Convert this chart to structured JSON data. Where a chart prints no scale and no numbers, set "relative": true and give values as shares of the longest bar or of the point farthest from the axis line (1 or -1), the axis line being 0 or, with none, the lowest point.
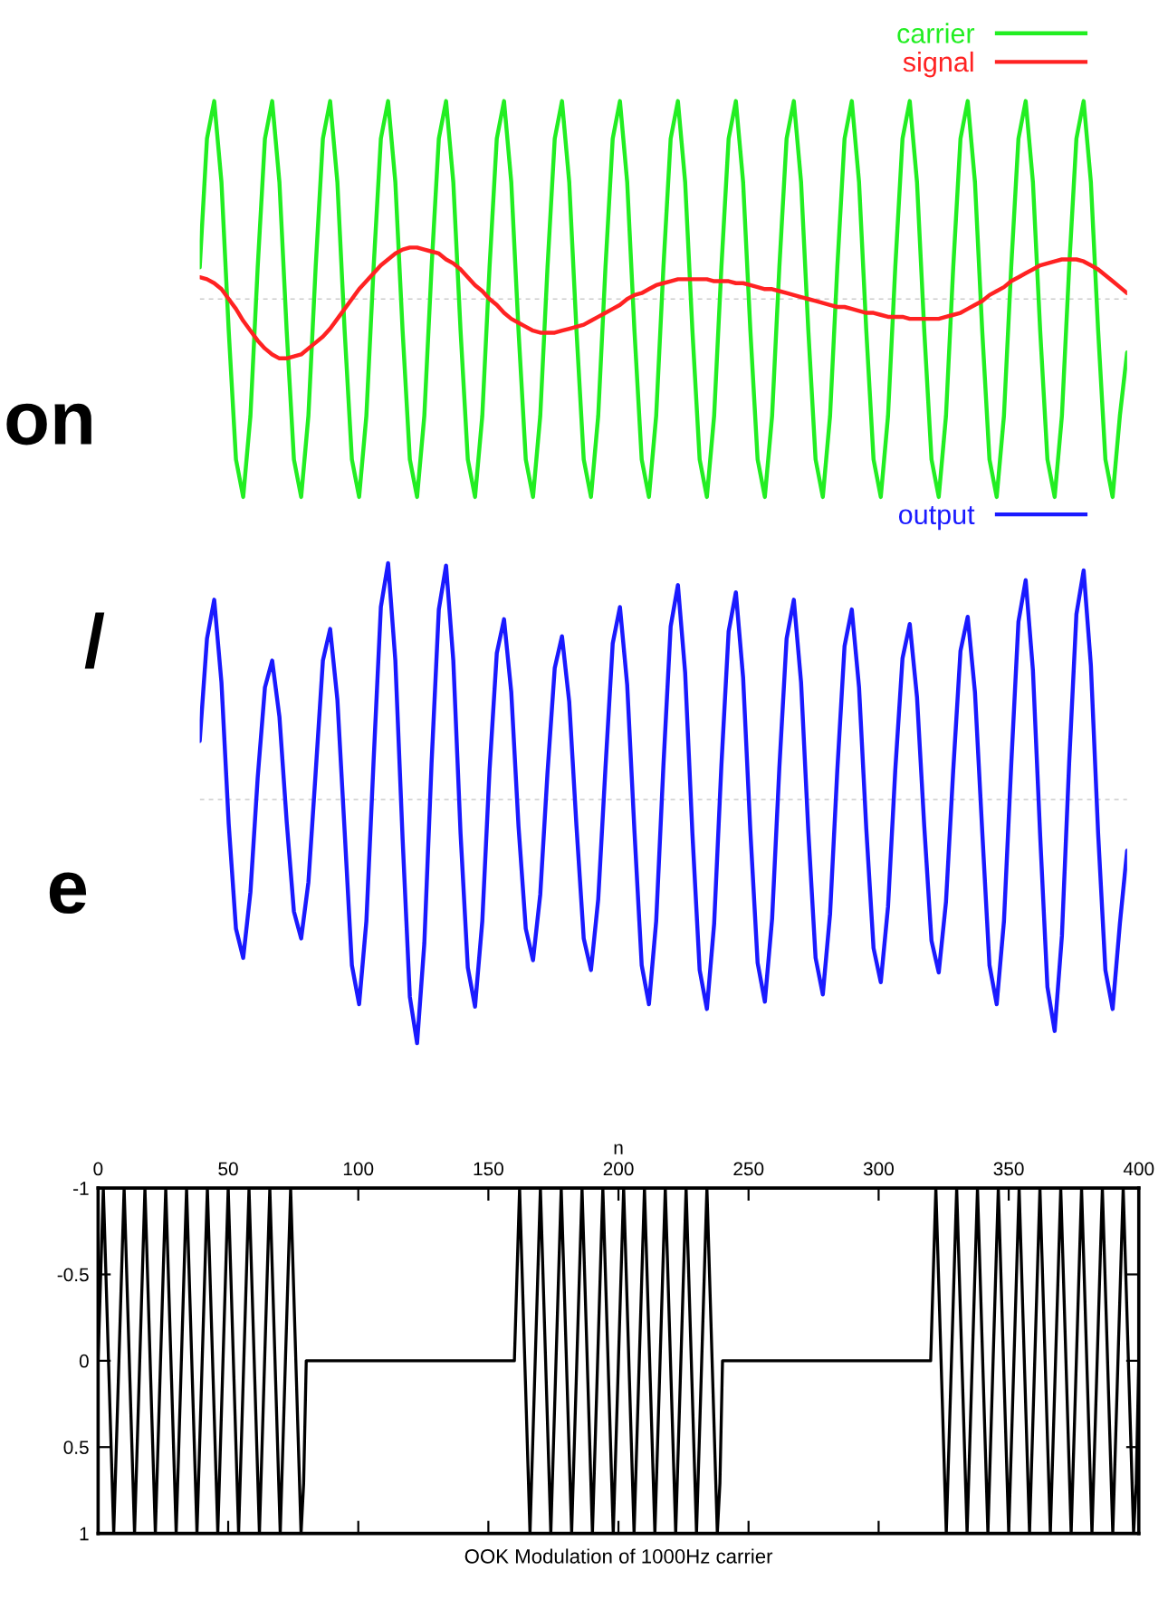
{
  "chart_data": [
    {
      "type": "other",
      "annotations": [
        "on",
        "/",
        "e"
      ]
    },
    {
      "type": "line",
      "relative": true,
      "legend": "top right",
      "ref_lines": [
        {
          "axis": "y",
          "value": 0,
          "color": "#cccccc",
          "line_style": "dashed"
        }
      ],
      "categories": [
        null,
        null,
        null,
        null,
        null,
        null,
        null,
        null,
        null,
        null,
        null,
        null,
        null,
        null,
        null,
        null,
        null,
        null,
        null,
        null,
        null,
        null,
        null,
        null,
        null,
        null,
        null,
        null,
        null,
        null,
        null,
        null,
        null,
        null,
        null,
        null,
        null,
        null,
        null,
        null,
        null,
        null,
        null,
        null,
        null,
        null,
        null,
        null,
        null,
        null,
        null,
        null,
        null,
        null,
        null,
        null,
        null,
        null,
        null,
        null,
        null,
        null,
        null,
        null,
        null,
        null,
        null,
        null,
        null,
        null,
        null,
        null,
        null,
        null,
        null,
        null,
        null,
        null,
        null,
        null,
        null,
        null,
        null,
        null,
        null,
        null,
        null,
        null,
        null,
        null,
        null,
        null,
        null,
        null,
        null,
        null,
        null,
        null,
        null,
        null,
        null,
        null,
        null,
        null,
        null,
        null,
        null,
        null,
        null,
        null,
        null,
        null,
        null,
        null,
        null,
        null,
        null,
        null,
        null,
        null,
        null,
        null,
        null,
        null,
        null,
        null,
        null,
        null,
        null
      ],
      "series": [
        {
          "name": "carrier",
          "color": "#22ee22",
          "values": [
            0.16,
            0.81,
            1,
            0.59,
            -0.16,
            -0.81,
            -1,
            -0.59,
            0.16,
            0.81,
            1,
            0.59,
            -0.16,
            -0.81,
            -1,
            -0.59,
            0.16,
            0.81,
            1,
            0.59,
            -0.16,
            -0.81,
            -1,
            -0.59,
            0.16,
            0.81,
            1,
            0.59,
            -0.16,
            -0.81,
            -1,
            -0.59,
            0.16,
            0.81,
            1,
            0.59,
            -0.16,
            -0.81,
            -1,
            -0.59,
            0.16,
            0.81,
            1,
            0.59,
            -0.16,
            -0.81,
            -1,
            -0.59,
            0.16,
            0.81,
            1,
            0.59,
            -0.16,
            -0.81,
            -1,
            -0.59,
            0.16,
            0.81,
            1,
            0.59,
            -0.16,
            -0.81,
            -1,
            -0.59,
            0.16,
            0.81,
            1,
            0.59,
            -0.16,
            -0.81,
            -1,
            -0.59,
            0.16,
            0.81,
            1,
            0.59,
            -0.16,
            -0.81,
            -1,
            -0.59,
            0.16,
            0.81,
            1,
            0.59,
            -0.16,
            -0.81,
            -1,
            -0.59,
            0.16,
            0.81,
            1,
            0.59,
            -0.16,
            -0.81,
            -1,
            -0.59,
            0.16,
            0.81,
            1,
            0.59,
            -0.16,
            -0.81,
            -1,
            -0.59,
            0.16,
            0.81,
            1,
            0.59,
            -0.16,
            -0.81,
            -1,
            -0.59,
            0.16,
            0.81,
            1,
            0.59,
            -0.16,
            -0.81,
            -1,
            -0.59,
            0.16,
            0.81,
            1,
            0.59,
            -0.16,
            -0.81,
            -1,
            -0.59,
            -0.27
          ]
        },
        {
          "name": "signal",
          "color": "#ff2222",
          "values": [
            0.11,
            0.1,
            0.08,
            0.05,
            0.0,
            -0.05,
            -0.11,
            -0.16,
            -0.21,
            -0.25,
            -0.28,
            -0.3,
            -0.3,
            -0.29,
            -0.28,
            -0.25,
            -0.22,
            -0.19,
            -0.15,
            -0.1,
            -0.05,
            0.0,
            0.05,
            0.09,
            0.13,
            0.17,
            0.2,
            0.23,
            0.25,
            0.26,
            0.26,
            0.25,
            0.24,
            0.23,
            0.2,
            0.18,
            0.15,
            0.11,
            0.07,
            0.04,
            0.0,
            -0.03,
            -0.07,
            -0.1,
            -0.12,
            -0.14,
            -0.16,
            -0.17,
            -0.17,
            -0.17,
            -0.16,
            -0.15,
            -0.14,
            -0.13,
            -0.11,
            -0.09,
            -0.07,
            -0.05,
            -0.03,
            0.0,
            0.02,
            0.03,
            0.05,
            0.07,
            0.08,
            0.09,
            0.1,
            0.1,
            0.1,
            0.1,
            0.1,
            0.09,
            0.09,
            0.09,
            0.08,
            0.08,
            0.07,
            0.06,
            0.05,
            0.05,
            0.04,
            0.03,
            0.02,
            0.01,
            0.0,
            -0.01,
            -0.02,
            -0.03,
            -0.04,
            -0.04,
            -0.05,
            -0.06,
            -0.07,
            -0.07,
            -0.08,
            -0.09,
            -0.09,
            -0.09,
            -0.1,
            -0.1,
            -0.1,
            -0.1,
            -0.1,
            -0.09,
            -0.08,
            -0.07,
            -0.05,
            -0.03,
            -0.01,
            0.02,
            0.04,
            0.06,
            0.09,
            0.11,
            0.13,
            0.15,
            0.17,
            0.18,
            0.19,
            0.2,
            0.2,
            0.2,
            0.19,
            0.17,
            0.15,
            0.12,
            0.09,
            0.06,
            0.03
          ]
        }
      ]
    },
    {
      "type": "line",
      "relative": true,
      "legend": "top right",
      "ref_lines": [
        {
          "axis": "y",
          "value": 0,
          "color": "#cccccc",
          "line_style": "dashed"
        }
      ],
      "categories": [
        null,
        null,
        null,
        null,
        null,
        null,
        null,
        null,
        null,
        null,
        null,
        null,
        null,
        null,
        null,
        null,
        null,
        null,
        null,
        null,
        null,
        null,
        null,
        null,
        null,
        null,
        null,
        null,
        null,
        null,
        null,
        null,
        null,
        null,
        null,
        null,
        null,
        null,
        null,
        null,
        null,
        null,
        null,
        null,
        null,
        null,
        null,
        null,
        null,
        null,
        null,
        null,
        null,
        null,
        null,
        null,
        null,
        null,
        null,
        null,
        null,
        null,
        null,
        null,
        null,
        null,
        null,
        null,
        null,
        null,
        null,
        null,
        null,
        null,
        null,
        null,
        null,
        null,
        null,
        null,
        null,
        null,
        null,
        null,
        null,
        null,
        null,
        null,
        null,
        null,
        null,
        null,
        null,
        null,
        null,
        null,
        null,
        null,
        null,
        null,
        null,
        null,
        null,
        null,
        null,
        null,
        null,
        null,
        null,
        null,
        null,
        null,
        null,
        null,
        null,
        null,
        null,
        null,
        null,
        null,
        null,
        null,
        null,
        null,
        null,
        null,
        null,
        null,
        null
      ],
      "series": [
        {
          "name": "output",
          "color": "#1a1aff",
          "values": [
            0.24,
            0.66,
            0.82,
            0.48,
            -0.1,
            -0.53,
            -0.65,
            -0.38,
            0.09,
            0.46,
            0.57,
            0.34,
            -0.09,
            -0.46,
            -0.57,
            -0.34,
            0.11,
            0.57,
            0.7,
            0.41,
            -0.13,
            -0.68,
            -0.84,
            -0.5,
            0.16,
            0.79,
            0.97,
            0.57,
            -0.16,
            -0.81,
            -1,
            -0.59,
            0.15,
            0.78,
            0.96,
            0.57,
            -0.14,
            -0.69,
            -0.85,
            -0.5,
            0.12,
            0.6,
            0.74,
            0.44,
            -0.11,
            -0.53,
            -0.66,
            -0.39,
            0.11,
            0.54,
            0.67,
            0.4,
            -0.11,
            -0.57,
            -0.7,
            -0.41,
            0.13,
            0.64,
            0.79,
            0.47,
            -0.13,
            -0.68,
            -0.84,
            -0.5,
            0.14,
            0.71,
            0.88,
            0.52,
            -0.14,
            -0.7,
            -0.86,
            -0.51,
            0.14,
            0.69,
            0.85,
            0.5,
            -0.13,
            -0.67,
            -0.83,
            -0.49,
            0.13,
            0.66,
            0.82,
            0.48,
            -0.13,
            -0.65,
            -0.8,
            -0.47,
            0.12,
            0.63,
            0.78,
            0.46,
            -0.12,
            -0.61,
            -0.75,
            -0.44,
            0.12,
            0.58,
            0.72,
            0.42,
            -0.11,
            -0.58,
            -0.71,
            -0.42,
            0.12,
            0.61,
            0.75,
            0.44,
            -0.13,
            -0.68,
            -0.84,
            -0.5,
            0.14,
            0.73,
            0.9,
            0.53,
            -0.15,
            -0.77,
            -0.95,
            -0.56,
            0.15,
            0.76,
            0.94,
            0.55,
            -0.14,
            -0.7,
            -0.86,
            -0.51,
            -0.21
          ]
        }
      ]
    },
    {
      "type": "line",
      "title": "OOK Modulation of 1000Hz carrier",
      "xlabel": "n",
      "xlim": [
        0,
        400
      ],
      "ylim": [
        1,
        -1
      ],
      "xticks": [
        0,
        50,
        100,
        150,
        200,
        250,
        300,
        350,
        400
      ],
      "yticks": [
        -1,
        -0.5,
        0,
        0.5,
        1
      ],
      "marker": "none",
      "series": [
        {
          "color": "#000000",
          "x": [
            0,
            2,
            6,
            10,
            14,
            18,
            22,
            26,
            30,
            34,
            38,
            42,
            46,
            50,
            54,
            58,
            62,
            66,
            70,
            74,
            78,
            79,
            80,
            160,
            162,
            166,
            170,
            174,
            178,
            182,
            186,
            190,
            194,
            198,
            202,
            206,
            210,
            214,
            218,
            222,
            226,
            230,
            234,
            238,
            239,
            240,
            320,
            322,
            326,
            330,
            334,
            338,
            342,
            346,
            350,
            354,
            358,
            362,
            366,
            370,
            374,
            378,
            382,
            386,
            390,
            394,
            398,
            399,
            400
          ],
          "values": [
            0,
            -1,
            1,
            -1,
            1,
            -1,
            1,
            -1,
            1,
            -1,
            1,
            -1,
            1,
            -1,
            1,
            -1,
            1,
            -1,
            1,
            -1,
            1,
            0.71,
            0,
            0,
            -1,
            1,
            -1,
            1,
            -1,
            1,
            -1,
            1,
            -1,
            1,
            -1,
            1,
            -1,
            1,
            -1,
            1,
            -1,
            1,
            -1,
            1,
            0.71,
            0,
            0,
            -1,
            1,
            -1,
            1,
            -1,
            1,
            -1,
            1,
            -1,
            1,
            -1,
            1,
            -1,
            1,
            -1,
            1,
            -1,
            1,
            -1,
            1,
            0.71,
            0
          ]
        }
      ]
    }
  ]
}
